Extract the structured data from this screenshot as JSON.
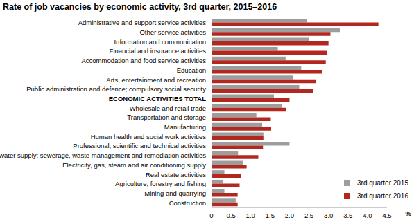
{
  "chart_data": {
    "type": "bar",
    "title": "Rate of job vacancies by economic activity, 3rd quarter, 2015–2016",
    "orientation": "horizontal",
    "x_label": "%",
    "categories": [
      "Administrative and support service activities",
      "Other service activities",
      "Information and communication",
      "Financial and insurance activities",
      "Accommodation and food service activities",
      "Education",
      "Arts, entertainment and recreation",
      "Public administration and defence; compulsory social security",
      "ECONOMIC ACTIVITIES TOTAL",
      "Wholesale and retail trade",
      "Transportation and storage",
      "Manufacturing",
      "Human health and social work activities",
      "Professional, scientific and technical activities",
      "Water supply; sewerage, waste management and remediation activities",
      "Electricity, gas, steam and air conditioning supply",
      "Real estate activities",
      "Agriculture, forestry and fishing",
      "Mining and quarrying",
      "Construction"
    ],
    "series": [
      {
        "name": "3rd quarter 2015",
        "color": "#9d9d9d",
        "values": [
          2.45,
          3.3,
          2.5,
          1.7,
          1.9,
          2.3,
          2.1,
          2.25,
          1.6,
          1.8,
          1.15,
          1.3,
          1.33,
          2.0,
          0.68,
          0.8,
          0.33,
          0.3,
          0.33,
          0.62
        ]
      },
      {
        "name": "3rd quarter 2016",
        "color": "#b2281e",
        "values": [
          4.28,
          3.05,
          3.0,
          2.97,
          2.93,
          2.83,
          2.67,
          2.6,
          2.0,
          1.92,
          1.52,
          1.53,
          1.33,
          1.32,
          1.2,
          0.9,
          0.75,
          0.72,
          0.67,
          0.67
        ]
      }
    ],
    "xlim": [
      0,
      4.5
    ],
    "xticks": [
      0,
      {
        "value": 0.5,
        "label": "0.5"
      },
      {
        "value": 1,
        "label": "1.0"
      },
      {
        "value": 1.5,
        "label": "1.5"
      },
      {
        "value": 2,
        "label": "2.0"
      },
      {
        "value": 2.5,
        "label": "2.5"
      },
      {
        "value": 3,
        "label": "3.0"
      },
      {
        "value": 3.5,
        "label": "3.5"
      },
      {
        "value": 4,
        "label": "4.0"
      },
      {
        "value": 4.5,
        "label": "4.5"
      }
    ],
    "grid": false,
    "legend": "lower right"
  }
}
